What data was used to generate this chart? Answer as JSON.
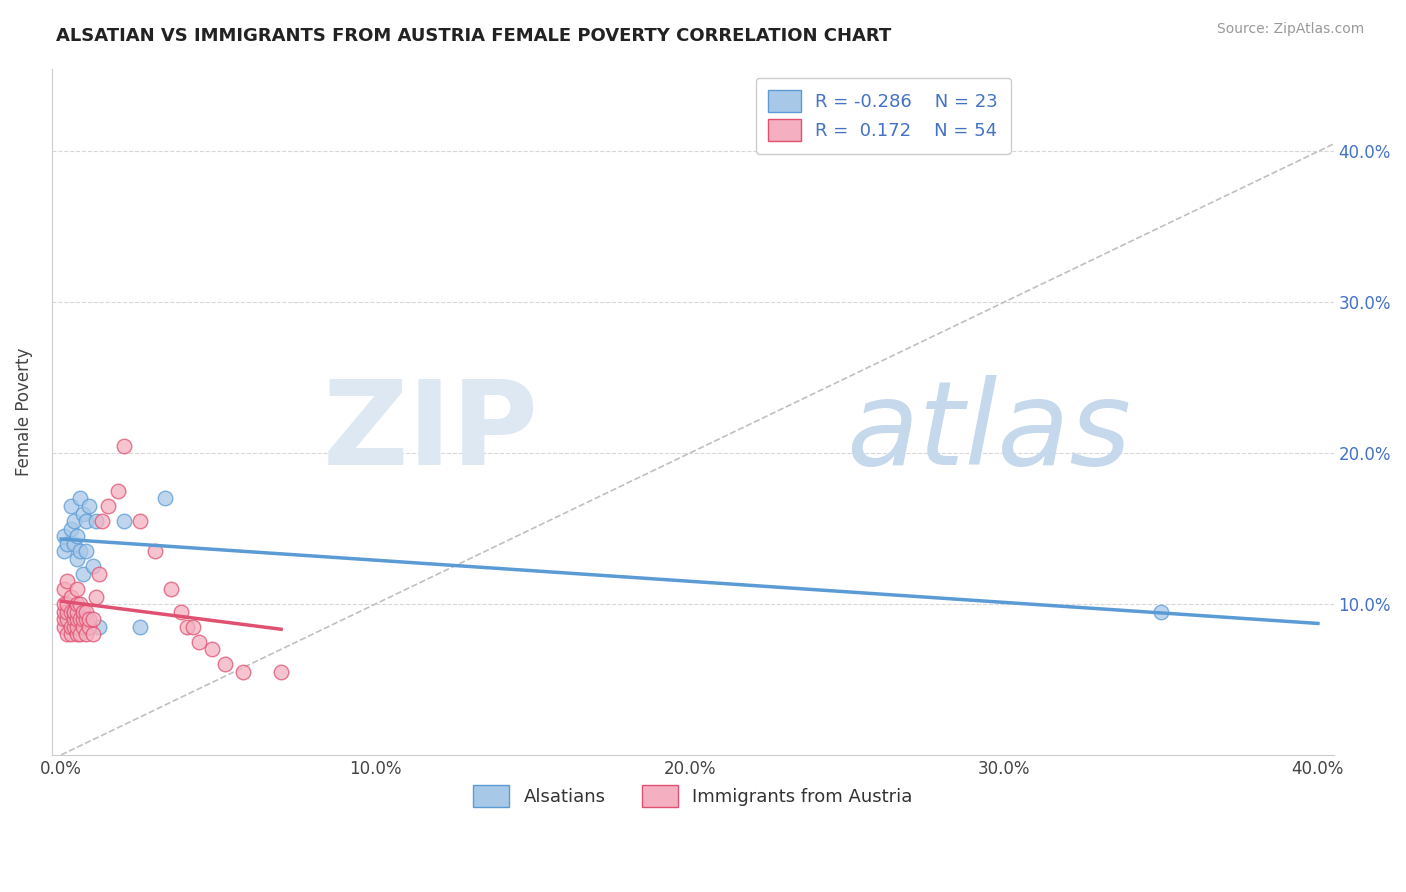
{
  "title": "ALSATIAN VS IMMIGRANTS FROM AUSTRIA FEMALE POVERTY CORRELATION CHART",
  "source": "Source: ZipAtlas.com",
  "ylabel": "Female Poverty",
  "xlim": [
    -0.003,
    0.405
  ],
  "ylim": [
    0.0,
    0.455
  ],
  "xtick_labels": [
    "0.0%",
    "10.0%",
    "20.0%",
    "30.0%",
    "40.0%"
  ],
  "xtick_vals": [
    0.0,
    0.1,
    0.2,
    0.3,
    0.4
  ],
  "ytick_labels": [
    "10.0%",
    "20.0%",
    "30.0%",
    "40.0%"
  ],
  "ytick_vals": [
    0.1,
    0.2,
    0.3,
    0.4
  ],
  "r1": "-0.286",
  "n1": "23",
  "r2": "0.172",
  "n2": "54",
  "color_alsatian_fill": "#a8c8e8",
  "color_alsatian_edge": "#5b9bd5",
  "color_austria_fill": "#f4b0c0",
  "color_austria_edge": "#e05070",
  "color_line_alsatian": "#5b9bd5",
  "color_line_austria": "#e05070",
  "color_diag": "#c0c0c0",
  "alsatian_x": [
    0.001,
    0.001,
    0.002,
    0.003,
    0.003,
    0.004,
    0.004,
    0.005,
    0.005,
    0.006,
    0.006,
    0.007,
    0.007,
    0.008,
    0.008,
    0.009,
    0.01,
    0.011,
    0.012,
    0.02,
    0.025,
    0.033,
    0.35
  ],
  "alsatian_y": [
    0.135,
    0.145,
    0.14,
    0.15,
    0.165,
    0.14,
    0.155,
    0.13,
    0.145,
    0.135,
    0.17,
    0.12,
    0.16,
    0.135,
    0.155,
    0.165,
    0.125,
    0.155,
    0.085,
    0.155,
    0.085,
    0.17,
    0.095
  ],
  "austria_x": [
    0.001,
    0.001,
    0.001,
    0.001,
    0.001,
    0.002,
    0.002,
    0.002,
    0.002,
    0.002,
    0.003,
    0.003,
    0.003,
    0.003,
    0.004,
    0.004,
    0.004,
    0.004,
    0.005,
    0.005,
    0.005,
    0.005,
    0.005,
    0.005,
    0.006,
    0.006,
    0.006,
    0.007,
    0.007,
    0.007,
    0.008,
    0.008,
    0.008,
    0.009,
    0.009,
    0.01,
    0.01,
    0.011,
    0.012,
    0.013,
    0.015,
    0.018,
    0.02,
    0.025,
    0.03,
    0.035,
    0.038,
    0.04,
    0.042,
    0.044,
    0.048,
    0.052,
    0.058,
    0.07
  ],
  "austria_y": [
    0.085,
    0.09,
    0.095,
    0.1,
    0.11,
    0.08,
    0.09,
    0.095,
    0.1,
    0.115,
    0.08,
    0.085,
    0.095,
    0.105,
    0.085,
    0.09,
    0.095,
    0.095,
    0.08,
    0.085,
    0.09,
    0.095,
    0.1,
    0.11,
    0.08,
    0.09,
    0.1,
    0.085,
    0.09,
    0.095,
    0.08,
    0.09,
    0.095,
    0.085,
    0.09,
    0.08,
    0.09,
    0.105,
    0.12,
    0.155,
    0.165,
    0.175,
    0.205,
    0.155,
    0.135,
    0.11,
    0.095,
    0.085,
    0.085,
    0.075,
    0.07,
    0.06,
    0.055,
    0.055
  ]
}
